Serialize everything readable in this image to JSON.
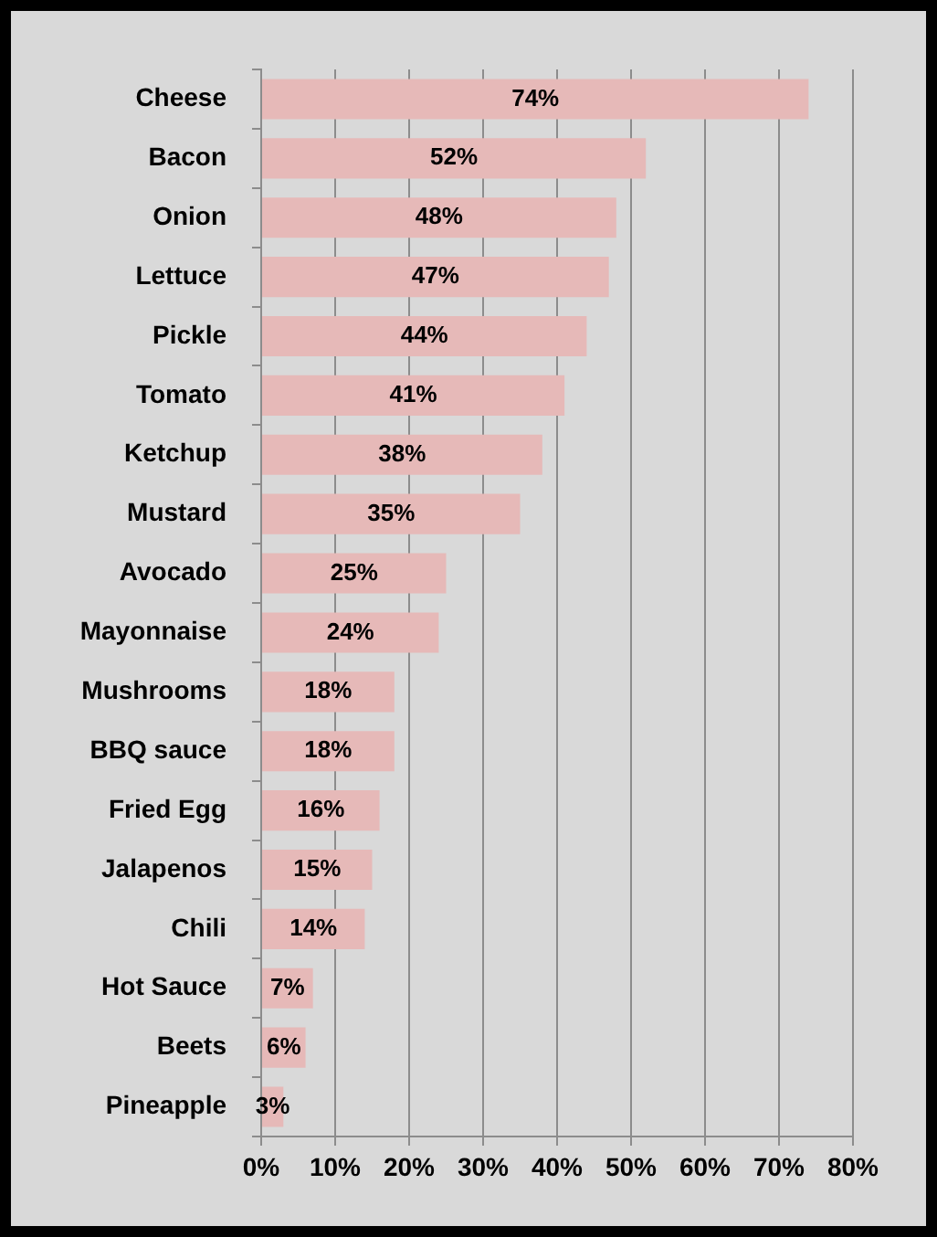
{
  "chart_data": {
    "type": "bar",
    "orientation": "horizontal",
    "categories": [
      "Cheese",
      "Bacon",
      "Onion",
      "Lettuce",
      "Pickle",
      "Tomato",
      "Ketchup",
      "Mustard",
      "Avocado",
      "Mayonnaise",
      "Mushrooms",
      "BBQ sauce",
      "Fried Egg",
      "Jalapenos",
      "Chili",
      "Hot Sauce",
      "Beets",
      "Pineapple"
    ],
    "values": [
      74,
      52,
      48,
      47,
      44,
      41,
      38,
      35,
      25,
      24,
      18,
      18,
      16,
      15,
      14,
      7,
      6,
      3
    ],
    "value_labels": [
      "74%",
      "52%",
      "48%",
      "47%",
      "44%",
      "41%",
      "38%",
      "35%",
      "25%",
      "24%",
      "18%",
      "18%",
      "16%",
      "15%",
      "14%",
      "7%",
      "6%",
      "3%"
    ],
    "color": "#e6b9b8",
    "xlim": [
      0,
      80
    ],
    "xticks": [
      {
        "value": 0,
        "label": "0%"
      },
      {
        "value": 10,
        "label": "10%"
      },
      {
        "value": 20,
        "label": "20%"
      },
      {
        "value": 30,
        "label": "30%"
      },
      {
        "value": 40,
        "label": "40%"
      },
      {
        "value": 50,
        "label": "50%"
      },
      {
        "value": 60,
        "label": "60%"
      },
      {
        "value": 70,
        "label": "70%"
      },
      {
        "value": 80,
        "label": "80%"
      }
    ],
    "grid": "x"
  }
}
